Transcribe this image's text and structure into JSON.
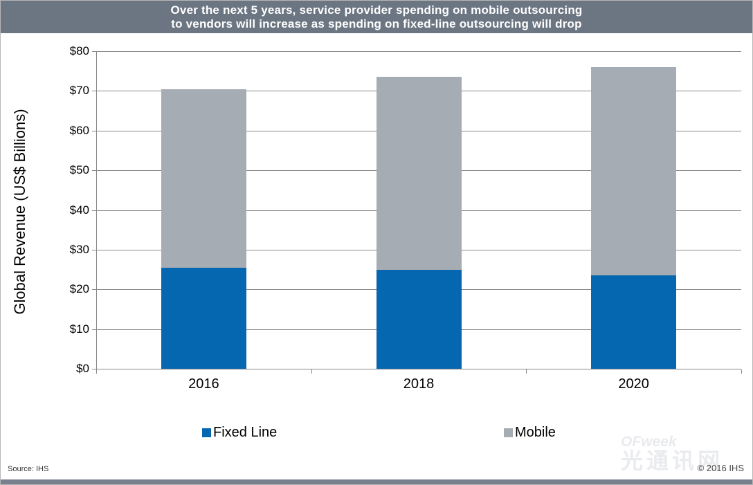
{
  "header": {
    "title_line1": "Over the next 5 years, service provider spending on mobile outsourcing",
    "title_line2": "to vendors will increase as spending on fixed-line outsourcing will drop"
  },
  "colors": {
    "header_bg": "#6c7582",
    "footer_strip": "#77808c",
    "fixed_line": "#0667b1",
    "mobile": "#a6acb3",
    "gridline": "#868686"
  },
  "footer": {
    "source": "Source: IHS",
    "copyright": "© 2016 IHS"
  },
  "watermark": {
    "brand": "OFweek",
    "cn": "光通讯网"
  },
  "chart_data": {
    "type": "bar",
    "subtype": "stacked",
    "title": "Over the next 5 years, service provider spending on mobile outsourcing to vendors will increase as spending on fixed-line outsourcing will drop",
    "categories": [
      "2016",
      "2018",
      "2020"
    ],
    "series": [
      {
        "name": "Fixed Line",
        "color_key": "fixed_line",
        "values": [
          25.5,
          25.0,
          23.5
        ]
      },
      {
        "name": "Mobile",
        "color_key": "mobile",
        "values": [
          45.0,
          48.5,
          52.5
        ]
      }
    ],
    "stack_totals": [
      70.5,
      73.5,
      76.0
    ],
    "xlabel": "",
    "ylabel": "Global Revenue (US$ Billions)",
    "ylim": [
      0,
      80
    ],
    "yticks": [
      {
        "value": 0,
        "label": "$0"
      },
      {
        "value": 10,
        "label": "$10"
      },
      {
        "value": 20,
        "label": "$20"
      },
      {
        "value": 30,
        "label": "$30"
      },
      {
        "value": 40,
        "label": "$40"
      },
      {
        "value": 50,
        "label": "$50"
      },
      {
        "value": 60,
        "label": "$60"
      },
      {
        "value": 70,
        "label": "$70"
      },
      {
        "value": 80,
        "label": "$80"
      }
    ],
    "grid": true,
    "legend_position": "bottom"
  }
}
